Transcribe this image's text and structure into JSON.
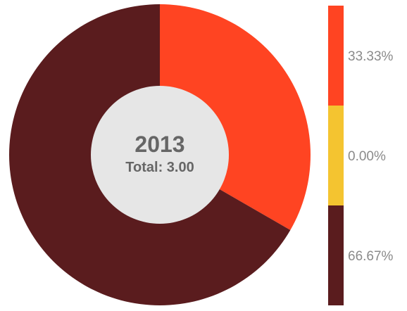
{
  "chart_data": {
    "type": "pie",
    "style": "donut",
    "center_title": "2013",
    "center_subtitle": "Total: 3.00",
    "total": 3.0,
    "legend_placement": "right",
    "series": [
      {
        "value": 1.0,
        "percent": 33.33,
        "label": "33.33%",
        "color": "#ff4422"
      },
      {
        "value": 0.0,
        "percent": 0.0,
        "label": "0.00%",
        "color": "#f4c430"
      },
      {
        "value": 2.0,
        "percent": 66.67,
        "label": "66.67%",
        "color": "#5a1c1e"
      }
    ]
  },
  "colors": {
    "center_fill": "#e6e6e6",
    "center_text": "#666666",
    "legend_text": "#8a8a8a"
  }
}
